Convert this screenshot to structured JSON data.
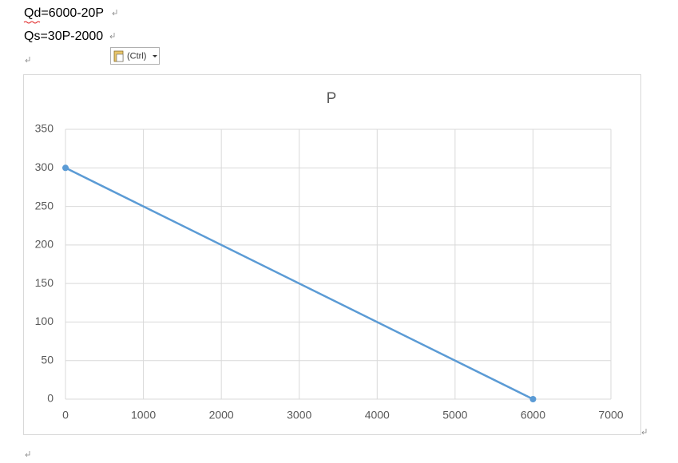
{
  "document": {
    "lines": [
      "Qd=6000-20P",
      "Qs=30P-2000"
    ],
    "paste_button": "(Ctrl)"
  },
  "chart_data": {
    "type": "line",
    "title": "P",
    "x": [
      0,
      6000
    ],
    "values": [
      300,
      0
    ],
    "color": "#5b9bd5",
    "xlim": [
      0,
      7000
    ],
    "xticks": [
      0,
      1000,
      2000,
      3000,
      4000,
      5000,
      6000,
      7000
    ],
    "ylim": [
      0,
      350
    ],
    "yticks": [
      0,
      50,
      100,
      150,
      200,
      250,
      300,
      350
    ],
    "grid": true,
    "markers": true
  }
}
